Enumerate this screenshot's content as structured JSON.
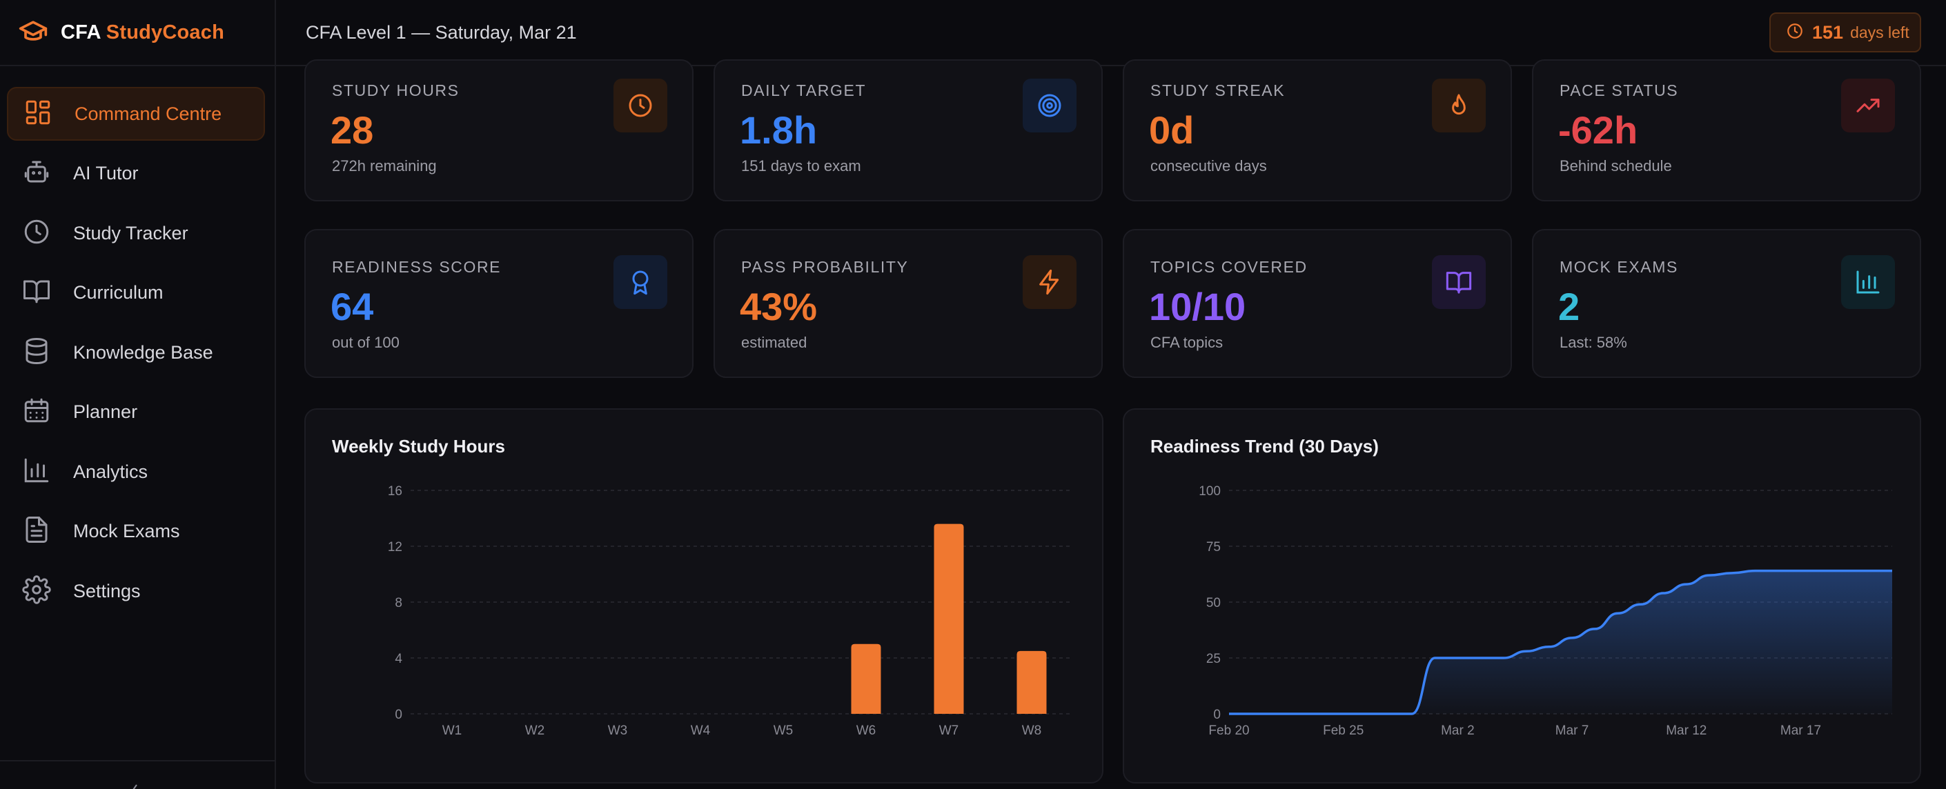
{
  "brand": {
    "part1": "CFA",
    "part2": "StudyCoach"
  },
  "header": {
    "title": "CFA Level 1 — Saturday, Mar 21",
    "days_left_value": "151",
    "days_left_label": "days left"
  },
  "sidebar": {
    "items": [
      {
        "label": "Command Centre",
        "icon": "grid-icon",
        "active": true
      },
      {
        "label": "AI Tutor",
        "icon": "robot-icon"
      },
      {
        "label": "Study Tracker",
        "icon": "clock-icon"
      },
      {
        "label": "Curriculum",
        "icon": "book-open-icon"
      },
      {
        "label": "Knowledge Base",
        "icon": "database-icon"
      },
      {
        "label": "Planner",
        "icon": "calendar-icon"
      },
      {
        "label": "Analytics",
        "icon": "bar-chart-icon"
      },
      {
        "label": "Mock Exams",
        "icon": "document-icon"
      },
      {
        "label": "Settings",
        "icon": "gear-icon"
      }
    ]
  },
  "stats": [
    {
      "label": "STUDY HOURS",
      "value": "28",
      "sub": "272h remaining",
      "color": "#f07830",
      "icon": "clock-icon"
    },
    {
      "label": "DAILY TARGET",
      "value": "1.8h",
      "sub": "151 days to exam",
      "color": "#3b82f6",
      "icon": "target-icon"
    },
    {
      "label": "STUDY STREAK",
      "value": "0d",
      "sub": "consecutive days",
      "color": "#f07830",
      "icon": "flame-icon"
    },
    {
      "label": "PACE STATUS",
      "value": "-62h",
      "sub": "Behind schedule",
      "color": "#e5484d",
      "icon": "trending-up-icon"
    },
    {
      "label": "READINESS SCORE",
      "value": "64",
      "sub": "out of 100",
      "color": "#3b82f6",
      "icon": "award-icon"
    },
    {
      "label": "PASS PROBABILITY",
      "value": "43%",
      "sub": "estimated",
      "color": "#f07830",
      "icon": "lightning-icon"
    },
    {
      "label": "TOPICS COVERED",
      "value": "10/10",
      "sub": "CFA topics",
      "color": "#8b5cf6",
      "icon": "book-icon"
    },
    {
      "label": "MOCK EXAMS",
      "value": "2",
      "sub": "Last: 58%",
      "color": "#38bdd8",
      "icon": "bar-chart-icon"
    }
  ],
  "chart_data": [
    {
      "type": "bar",
      "title": "Weekly Study Hours",
      "categories": [
        "W1",
        "W2",
        "W3",
        "W4",
        "W5",
        "W6",
        "W7",
        "W8"
      ],
      "values": [
        0,
        0,
        0,
        0,
        0,
        5,
        13.6,
        4.5
      ],
      "ylim": [
        0,
        16
      ],
      "yticks": [
        0,
        4,
        8,
        12,
        16
      ],
      "grid": true,
      "color": "#f07830"
    },
    {
      "type": "area",
      "title": "Readiness Trend (30 Days)",
      "x": [
        "Feb 20",
        "Feb 21",
        "Feb 22",
        "Feb 23",
        "Feb 24",
        "Feb 25",
        "Feb 26",
        "Feb 27",
        "Feb 28",
        "Mar 1",
        "Mar 2",
        "Mar 3",
        "Mar 4",
        "Mar 5",
        "Mar 6",
        "Mar 7",
        "Mar 8",
        "Mar 9",
        "Mar 10",
        "Mar 11",
        "Mar 12",
        "Mar 13",
        "Mar 14",
        "Mar 15",
        "Mar 16",
        "Mar 17",
        "Mar 18",
        "Mar 19",
        "Mar 20",
        "Mar 21"
      ],
      "values": [
        0,
        0,
        0,
        0,
        0,
        0,
        0,
        0,
        0,
        25,
        25,
        25,
        25,
        28,
        30,
        34,
        38,
        45,
        49,
        54,
        58,
        62,
        63,
        64,
        64,
        64,
        64,
        64,
        64,
        64
      ],
      "xticks": [
        "Feb 20",
        "Feb 25",
        "Mar 2",
        "Mar 7",
        "Mar 12",
        "Mar 17"
      ],
      "ylim": [
        0,
        100
      ],
      "yticks": [
        0,
        25,
        50,
        75,
        100
      ],
      "grid": true,
      "color": "#3b82f6"
    }
  ]
}
